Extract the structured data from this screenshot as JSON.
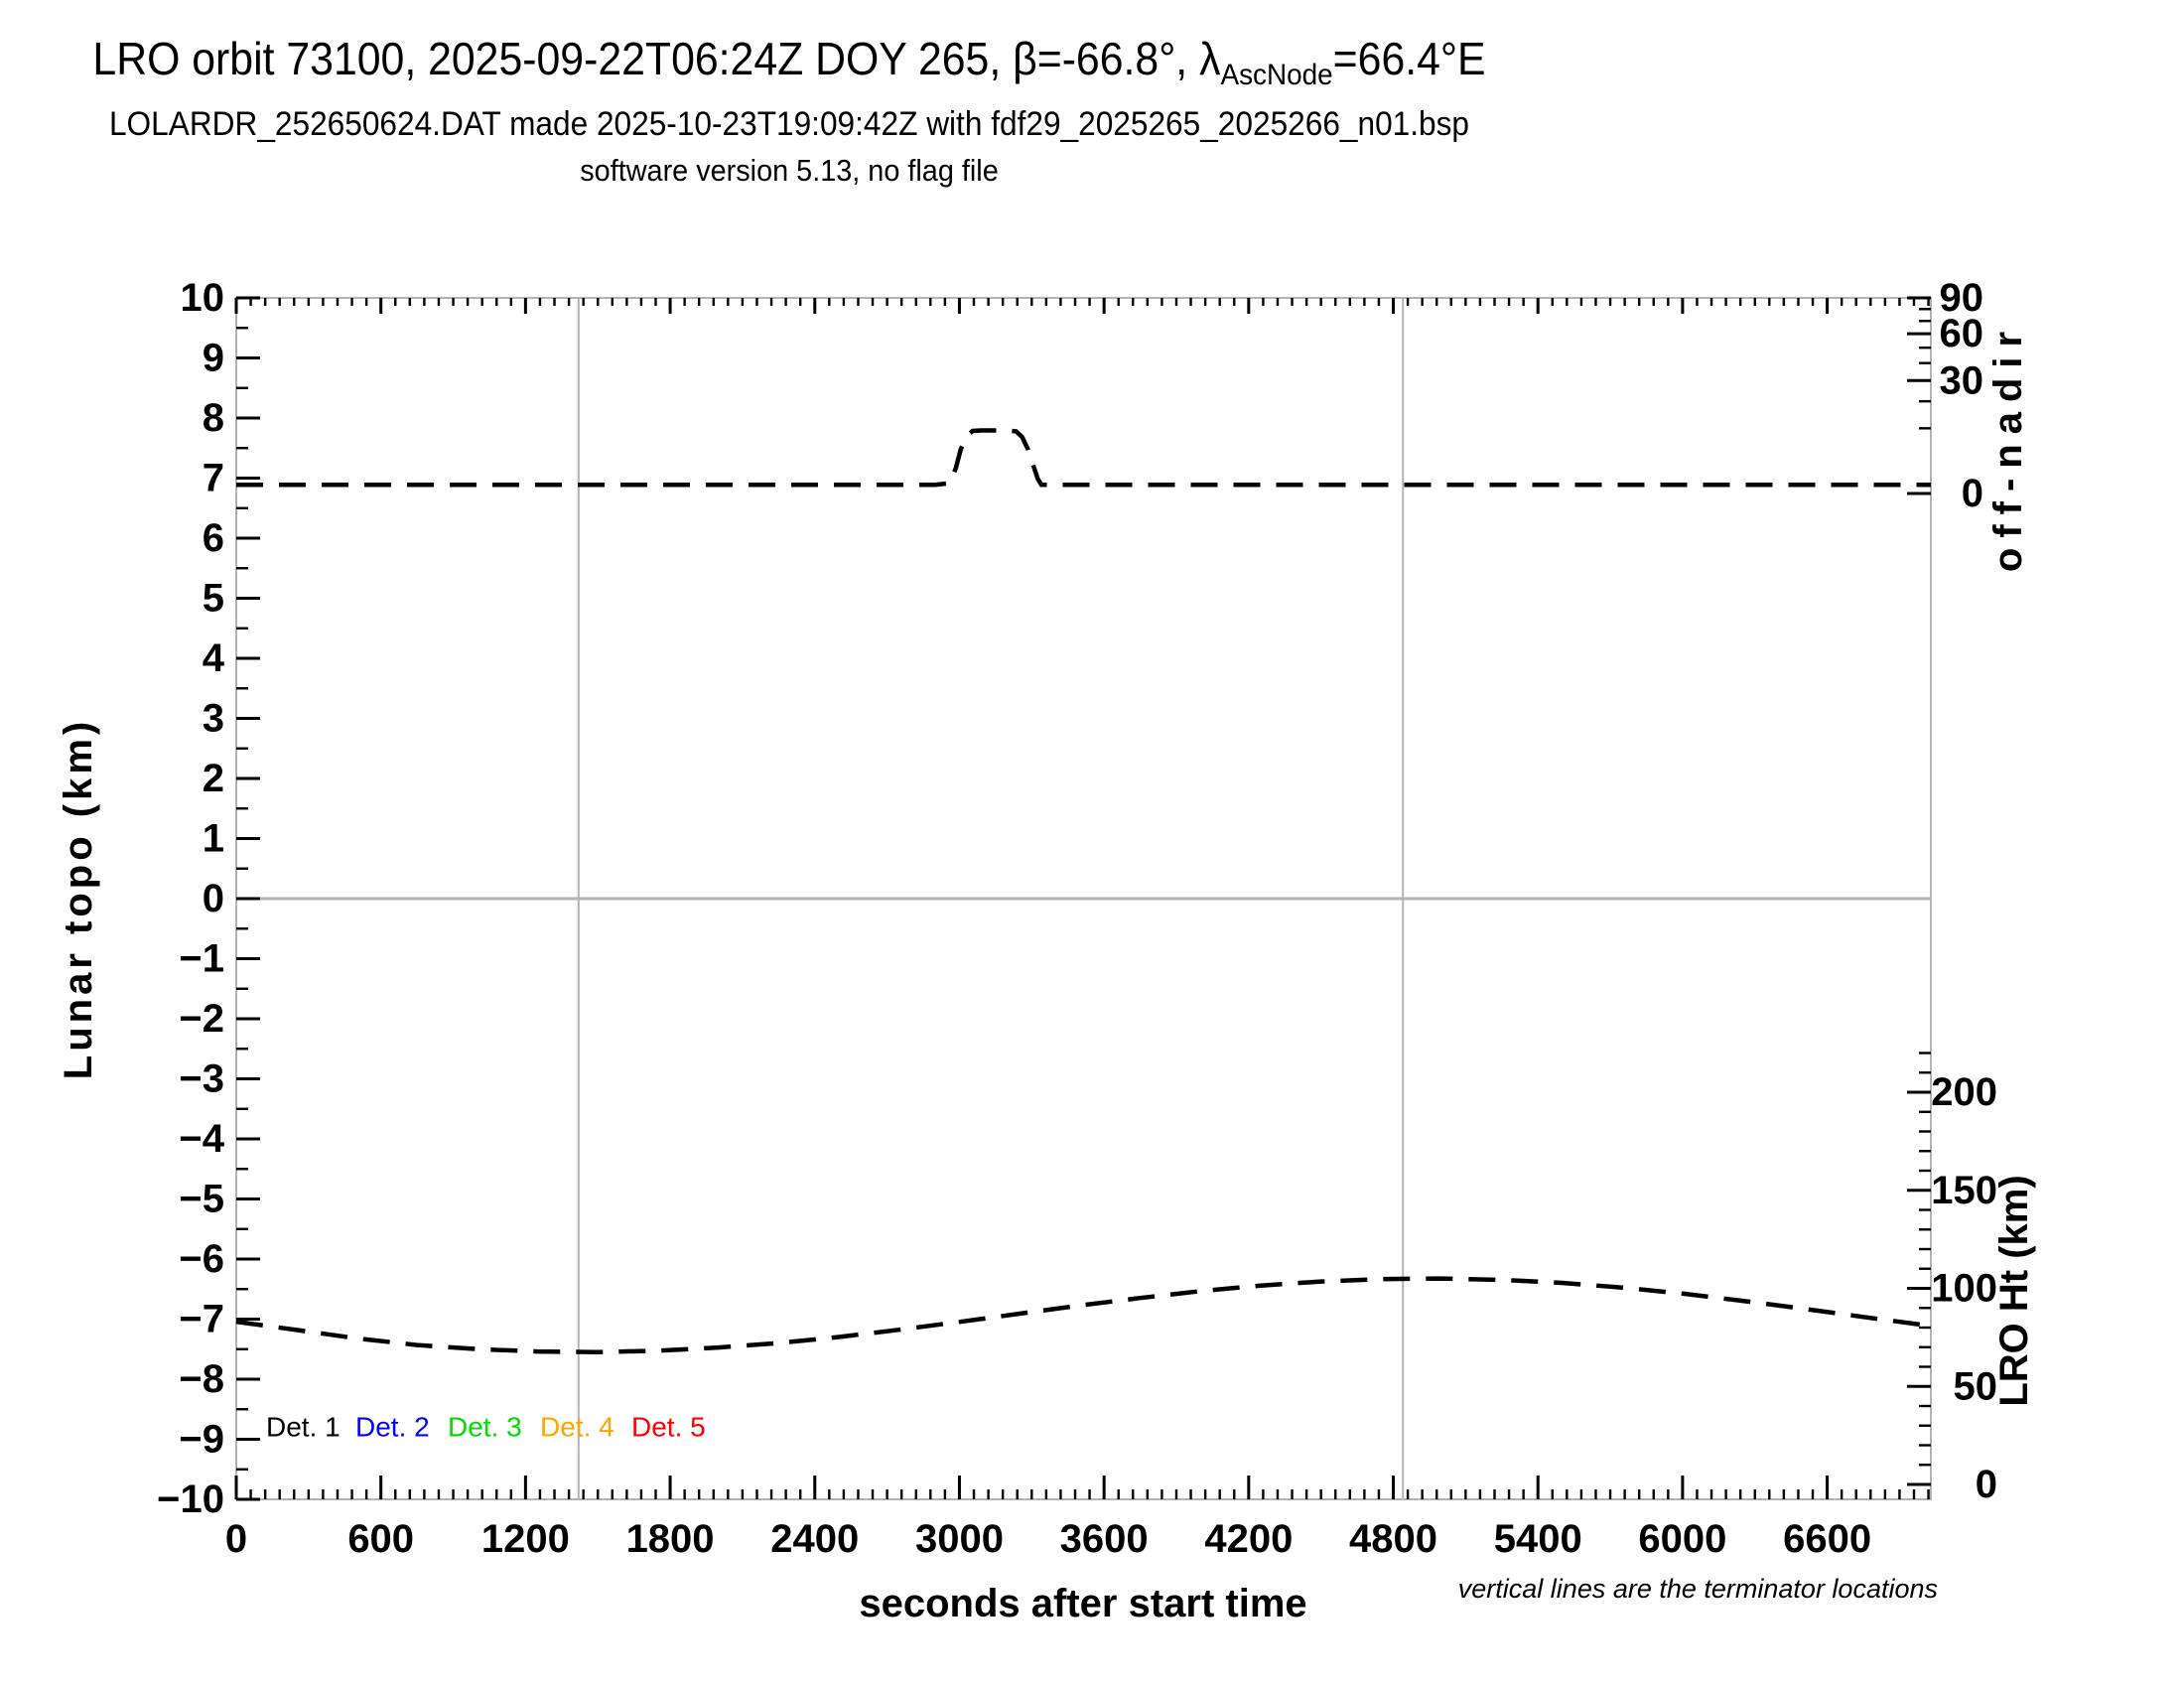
{
  "title": {
    "line1_prefix": "LRO orbit 73100, 2025-09-22T06:24Z DOY 265, β=-66.8°, λ",
    "line1_subscript": "AscNode",
    "line1_suffix": "=66.4°E",
    "line2": "LOLARDR_252650624.DAT made 2025-10-23T19:09:42Z with fdf29_2025265_2025266_n01.bsp",
    "line3": "software version 5.13, no flag file"
  },
  "chart_data": {
    "type": "line",
    "frame_color": "#b3b3b3",
    "x_axis": {
      "label": "seconds after start time",
      "range": [
        0,
        7030
      ],
      "major_ticks": [
        0,
        600,
        1200,
        1800,
        2400,
        3000,
        3600,
        4200,
        4800,
        5400,
        6000,
        6600
      ],
      "minor_step": 60
    },
    "left_axis": {
      "label": "Lunar topo (km)",
      "range": [
        -10,
        10
      ],
      "major_step": 1,
      "minor_step": 0.5
    },
    "right_axis_off_nadir": {
      "label": "off-nadir",
      "unit": "degrees",
      "scale": "sqrt",
      "major_ticks": [
        90,
        60,
        30,
        0
      ],
      "minor_ticks": [
        80,
        70,
        50,
        40,
        20,
        10
      ]
    },
    "right_axis_lro_ht": {
      "label": "LRO Ht (km)",
      "range": [
        0,
        220
      ],
      "major_ticks": [
        200,
        150,
        100,
        50,
        0
      ],
      "minor_step": 10,
      "minor_max": 220
    },
    "terminator_lines_s": [
      1420,
      4840
    ],
    "grid": {
      "horizontal_zero_line": true,
      "gridlines": "off"
    },
    "series": [
      {
        "name": "off-nadir-angle",
        "axis": "right_axis_off_nadir",
        "style": "dashed",
        "color": "#000000",
        "points_t_deg": [
          [
            0,
            0.18
          ],
          [
            300,
            0.18
          ],
          [
            600,
            0.18
          ],
          [
            900,
            0.18
          ],
          [
            1200,
            0.18
          ],
          [
            1500,
            0.18
          ],
          [
            1800,
            0.18
          ],
          [
            2100,
            0.18
          ],
          [
            2400,
            0.18
          ],
          [
            2700,
            0.18
          ],
          [
            2900,
            0.18
          ],
          [
            2960,
            0.25
          ],
          [
            2985,
            1.5
          ],
          [
            3005,
            4.5
          ],
          [
            3030,
            7.8
          ],
          [
            3055,
            9.2
          ],
          [
            3090,
            9.35
          ],
          [
            3150,
            9.35
          ],
          [
            3200,
            9.35
          ],
          [
            3235,
            9.1
          ],
          [
            3260,
            7.5
          ],
          [
            3285,
            4.5
          ],
          [
            3305,
            2.0
          ],
          [
            3325,
            0.5
          ],
          [
            3340,
            0.18
          ],
          [
            3600,
            0.18
          ],
          [
            3900,
            0.18
          ],
          [
            4200,
            0.18
          ],
          [
            4500,
            0.18
          ],
          [
            4800,
            0.18
          ],
          [
            5100,
            0.18
          ],
          [
            5400,
            0.18
          ],
          [
            5700,
            0.18
          ],
          [
            6000,
            0.18
          ],
          [
            6300,
            0.18
          ],
          [
            6600,
            0.18
          ],
          [
            6900,
            0.18
          ],
          [
            7030,
            0.18
          ]
        ]
      },
      {
        "name": "lro-height",
        "axis": "right_axis_lro_ht",
        "style": "dashed",
        "color": "#000000",
        "points_t_km": [
          [
            0,
            83.0
          ],
          [
            250,
            78.8
          ],
          [
            500,
            74.5
          ],
          [
            750,
            71.1
          ],
          [
            1000,
            69.0
          ],
          [
            1250,
            67.8
          ],
          [
            1500,
            67.5
          ],
          [
            1750,
            68.2
          ],
          [
            2000,
            69.8
          ],
          [
            2250,
            72.1
          ],
          [
            2500,
            75.2
          ],
          [
            2750,
            78.9
          ],
          [
            3000,
            82.9
          ],
          [
            3250,
            87.1
          ],
          [
            3500,
            91.3
          ],
          [
            3750,
            95.1
          ],
          [
            4000,
            98.6
          ],
          [
            4250,
            101.4
          ],
          [
            4500,
            103.5
          ],
          [
            4750,
            104.7
          ],
          [
            5000,
            105.0
          ],
          [
            5250,
            104.3
          ],
          [
            5500,
            102.8
          ],
          [
            5750,
            100.4
          ],
          [
            6000,
            97.3
          ],
          [
            6250,
            93.6
          ],
          [
            6500,
            89.6
          ],
          [
            6750,
            85.4
          ],
          [
            7030,
            80.8
          ]
        ]
      }
    ],
    "legend": {
      "items": [
        {
          "label": "Det. 1",
          "color": "#000000"
        },
        {
          "label": "Det. 2",
          "color": "#0000ff"
        },
        {
          "label": "Det. 3",
          "color": "#00dd00"
        },
        {
          "label": "Det. 4",
          "color": "#ffa500"
        },
        {
          "label": "Det. 5",
          "color": "#ff0000"
        }
      ]
    },
    "footnote": "vertical lines are the terminator locations"
  }
}
